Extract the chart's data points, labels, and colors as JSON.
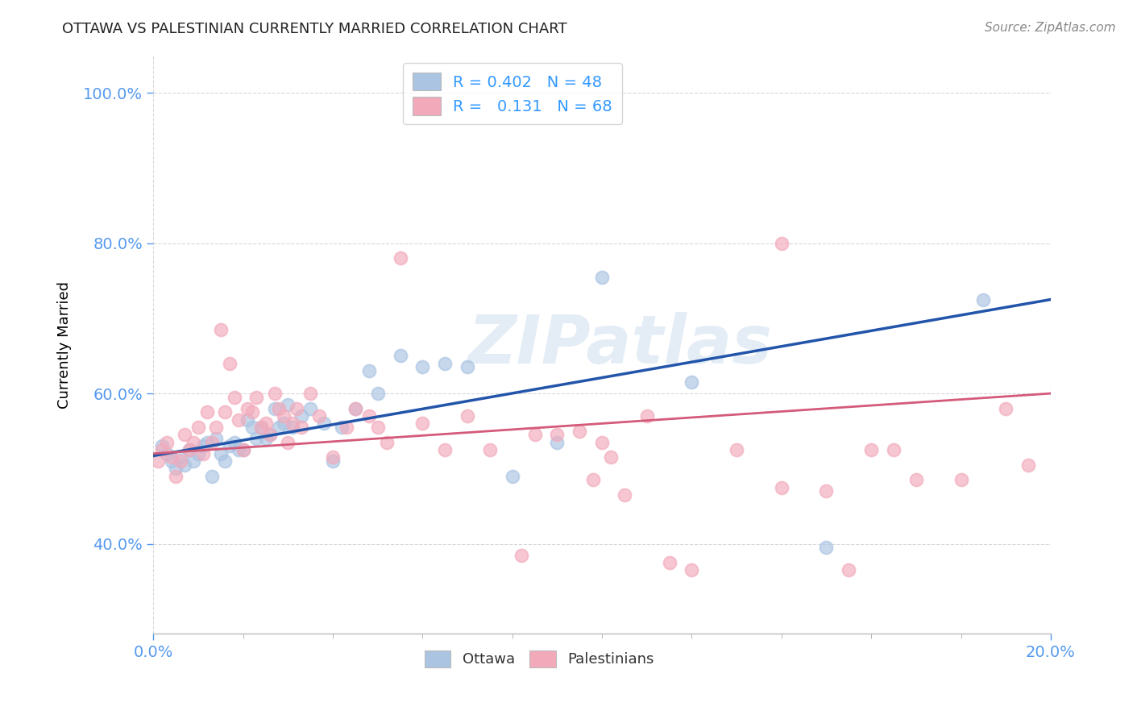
{
  "title": "OTTAWA VS PALESTINIAN CURRENTLY MARRIED CORRELATION CHART",
  "source": "Source: ZipAtlas.com",
  "ylabel_label": "Currently Married",
  "legend_bottom": [
    "Ottawa",
    "Palestinians"
  ],
  "r_ottawa": 0.402,
  "n_ottawa": 48,
  "r_palestinian": 0.131,
  "n_palestinian": 68,
  "watermark": "ZIPatlas",
  "bg_color": "#ffffff",
  "grid_color": "#d8d8d8",
  "blue_scatter_color": "#aac4e2",
  "pink_scatter_color": "#f2aabb",
  "blue_line_color": "#2255aa",
  "pink_line_color": "#d45a7a",
  "xlim": [
    0,
    0.2
  ],
  "ylim": [
    0.28,
    1.05
  ],
  "yticks": [
    0.4,
    0.6,
    0.8,
    1.0
  ],
  "xticks_minor": [
    0.02,
    0.04,
    0.06,
    0.08,
    0.1,
    0.12,
    0.14,
    0.16,
    0.18
  ],
  "ottawa_x": [
    0.002,
    0.003,
    0.004,
    0.005,
    0.006,
    0.007,
    0.008,
    0.009,
    0.01,
    0.011,
    0.012,
    0.013,
    0.014,
    0.015,
    0.016,
    0.017,
    0.018,
    0.019,
    0.02,
    0.021,
    0.022,
    0.023,
    0.024,
    0.025,
    0.026,
    0.027,
    0.028,
    0.029,
    0.03,
    0.031,
    0.033,
    0.035,
    0.038,
    0.04,
    0.042,
    0.045,
    0.048,
    0.05,
    0.055,
    0.06,
    0.065,
    0.07,
    0.08,
    0.09,
    0.1,
    0.12,
    0.15,
    0.185
  ],
  "ottawa_y": [
    0.53,
    0.52,
    0.51,
    0.5,
    0.515,
    0.505,
    0.525,
    0.51,
    0.52,
    0.53,
    0.535,
    0.49,
    0.54,
    0.52,
    0.51,
    0.53,
    0.535,
    0.525,
    0.525,
    0.565,
    0.555,
    0.54,
    0.555,
    0.54,
    0.545,
    0.58,
    0.555,
    0.56,
    0.585,
    0.555,
    0.57,
    0.58,
    0.56,
    0.51,
    0.555,
    0.58,
    0.63,
    0.6,
    0.65,
    0.635,
    0.64,
    0.635,
    0.49,
    0.535,
    0.755,
    0.615,
    0.395,
    0.725
  ],
  "palestinian_x": [
    0.001,
    0.002,
    0.003,
    0.004,
    0.005,
    0.006,
    0.007,
    0.008,
    0.009,
    0.01,
    0.011,
    0.012,
    0.013,
    0.014,
    0.015,
    0.016,
    0.017,
    0.018,
    0.019,
    0.02,
    0.021,
    0.022,
    0.023,
    0.024,
    0.025,
    0.026,
    0.027,
    0.028,
    0.029,
    0.03,
    0.031,
    0.032,
    0.033,
    0.035,
    0.037,
    0.04,
    0.043,
    0.045,
    0.048,
    0.05,
    0.052,
    0.055,
    0.06,
    0.065,
    0.07,
    0.075,
    0.085,
    0.09,
    0.095,
    0.1,
    0.105,
    0.11,
    0.12,
    0.13,
    0.14,
    0.15,
    0.155,
    0.16,
    0.17,
    0.18,
    0.19,
    0.195,
    0.14,
    0.165,
    0.115,
    0.102,
    0.098,
    0.082
  ],
  "palestinian_y": [
    0.51,
    0.525,
    0.535,
    0.515,
    0.49,
    0.51,
    0.545,
    0.525,
    0.535,
    0.555,
    0.52,
    0.575,
    0.535,
    0.555,
    0.685,
    0.575,
    0.64,
    0.595,
    0.565,
    0.525,
    0.58,
    0.575,
    0.595,
    0.555,
    0.56,
    0.545,
    0.6,
    0.58,
    0.57,
    0.535,
    0.56,
    0.58,
    0.555,
    0.6,
    0.57,
    0.515,
    0.555,
    0.58,
    0.57,
    0.555,
    0.535,
    0.78,
    0.56,
    0.525,
    0.57,
    0.525,
    0.545,
    0.545,
    0.55,
    0.535,
    0.465,
    0.57,
    0.365,
    0.525,
    0.475,
    0.47,
    0.365,
    0.525,
    0.485,
    0.485,
    0.58,
    0.505,
    0.8,
    0.525,
    0.375,
    0.515,
    0.485,
    0.385
  ]
}
